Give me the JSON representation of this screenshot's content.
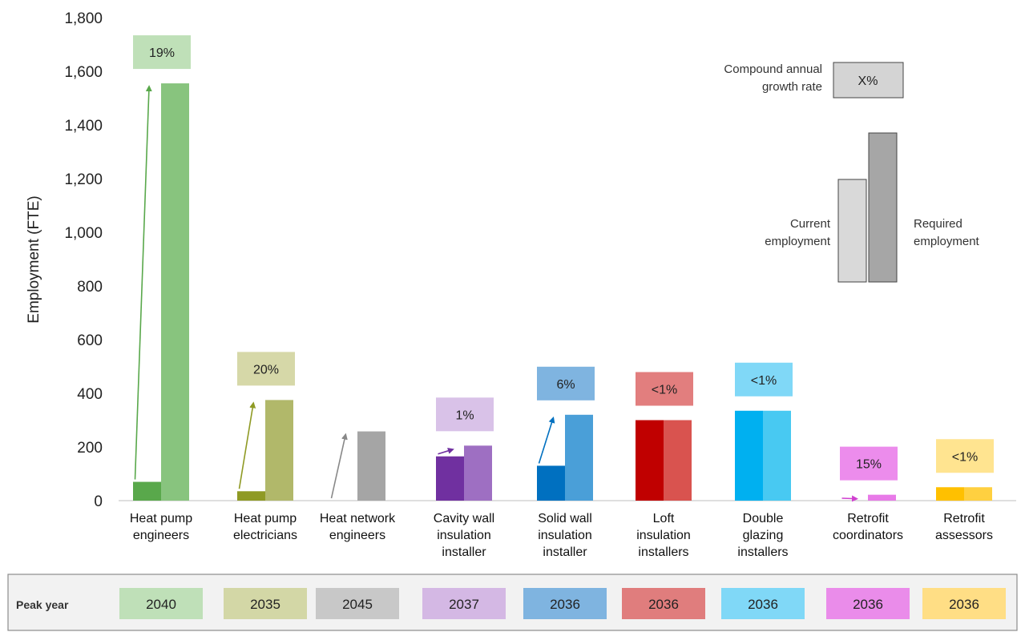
{
  "chart_data": {
    "type": "bar",
    "ylabel": "Employment (FTE)",
    "ylim": [
      0,
      1800
    ],
    "yticks": [
      "0",
      "200",
      "400",
      "600",
      "800",
      "1,000",
      "1,200",
      "1,400",
      "1,600",
      "1,800"
    ],
    "grid": false,
    "categories": [
      [
        "Heat pump",
        "engineers"
      ],
      [
        "Heat pump",
        "electricians"
      ],
      [
        "Heat network",
        "engineers"
      ],
      [
        "Cavity wall",
        "insulation",
        "installer"
      ],
      [
        "Solid wall",
        "insulation",
        "installer"
      ],
      [
        "Loft",
        "insulation",
        "installers"
      ],
      [
        "Double",
        "glazing",
        "installers"
      ],
      [
        "Retrofit",
        "coordinators"
      ],
      [
        "Retrofit",
        "assessors"
      ]
    ],
    "series": [
      {
        "values": [
          70,
          35,
          0,
          165,
          130,
          300,
          335,
          0,
          50
        ]
      },
      {
        "values": [
          1555,
          375,
          258,
          205,
          320,
          300,
          335,
          22,
          50
        ]
      }
    ],
    "cagr": [
      "19%",
      "20%",
      "",
      "1%",
      "6%",
      "<1%",
      "<1%",
      "15%",
      "<1%"
    ],
    "peak_years": [
      "2040",
      "2035",
      "2045",
      "2037",
      "2036",
      "2036",
      "2036",
      "2036",
      "2036"
    ],
    "colors": {
      "current": [
        "#59a84b",
        "#8f9a24",
        "#a5a5a5",
        "#7030a0",
        "#0070c0",
        "#c00000",
        "#00b0f0",
        "#e060e0",
        "#ffc000"
      ],
      "required": [
        "#88c47e",
        "#b1b86a",
        "#a5a5a5",
        "#9e6fc2",
        "#4a9fd8",
        "#d9534f",
        "#48c9f2",
        "#e87ae8",
        "#ffd040"
      ],
      "cagr_box": [
        "#bfe0b8",
        "#d6d8a8",
        "#d0d0d0",
        "#d9c2e8",
        "#7fb4e0",
        "#e27e7e",
        "#80d8f7",
        "#ec8cec",
        "#ffe490"
      ],
      "arrow": [
        "#59a84b",
        "#8f9a24",
        "#888888",
        "#7030a0",
        "#0070c0",
        "#c00000",
        "#00b0f0",
        "#d040d0",
        "#ffc000"
      ],
      "peak_box": [
        "#bfe0b8",
        "#d3d7a6",
        "#c8c8c8",
        "#d4b8e4",
        "#7fb4e0",
        "#e07d7d",
        "#80d8f7",
        "#ea8cea",
        "#ffde85"
      ]
    },
    "legend": {
      "cagr_label": [
        "Compound annual",
        "growth rate"
      ],
      "cagr_value": "X%",
      "current_label": [
        "Current",
        "employment"
      ],
      "required_label": [
        "Required",
        "employment"
      ]
    },
    "peak_year_title": "Peak year"
  }
}
